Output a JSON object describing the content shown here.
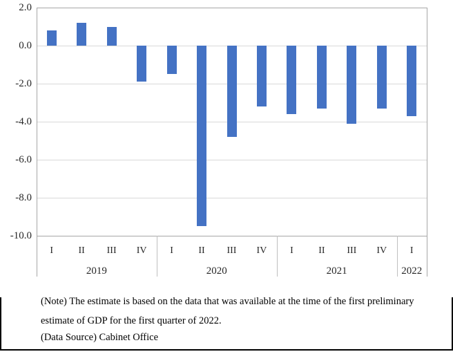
{
  "chart_data": {
    "type": "bar",
    "title": "",
    "xlabel": "",
    "ylabel": "",
    "ylim": [
      -10.0,
      2.0
    ],
    "ytick_interval": 2,
    "ytick_labels": [
      "2.0",
      "0.0",
      "-2.0",
      "-4.0",
      "-6.0",
      "-8.0",
      "-10.0"
    ],
    "grid": "horizontal",
    "legend": "none",
    "bar_color": "#4472C4",
    "gridline_color": "#D9D9D9",
    "axis_border_color": "#A6A6A6",
    "separator_color": "#BFBFBF",
    "label_color": "#262626",
    "groups": [
      {
        "year": "2019",
        "quarters": [
          "I",
          "II",
          "III",
          "IV"
        ],
        "values": [
          0.8,
          1.2,
          1.0,
          -1.9
        ]
      },
      {
        "year": "2020",
        "quarters": [
          "I",
          "II",
          "III",
          "IV"
        ],
        "values": [
          -1.5,
          -9.5,
          -4.8,
          -3.2
        ]
      },
      {
        "year": "2021",
        "quarters": [
          "I",
          "II",
          "III",
          "IV"
        ],
        "values": [
          -3.6,
          -3.3,
          -4.1,
          -3.3
        ]
      },
      {
        "year": "2022",
        "quarters": [
          "I"
        ],
        "values": [
          -3.7
        ]
      }
    ]
  },
  "notes": {
    "line1": "(Note) The estimate is based on the data that was available at the time of the first preliminary",
    "line2": "estimate of GDP for the first quarter of 2022.",
    "line3": "(Data Source) Cabinet Office"
  }
}
